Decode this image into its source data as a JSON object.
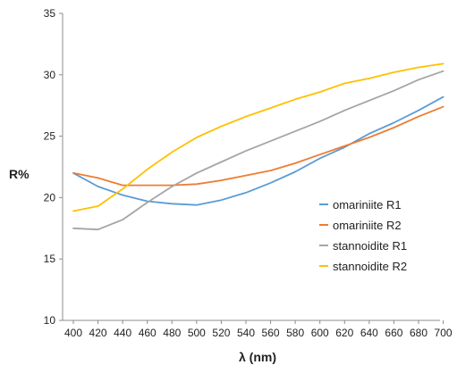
{
  "chart_data": {
    "type": "line",
    "xlabel": "λ (nm)",
    "ylabel": "R%",
    "xlim": [
      400,
      700
    ],
    "ylim": [
      10,
      35
    ],
    "x": [
      400,
      420,
      440,
      460,
      480,
      500,
      520,
      540,
      560,
      580,
      600,
      620,
      640,
      660,
      680,
      700
    ],
    "xticks": [
      "400",
      "420",
      "440",
      "460",
      "480",
      "500",
      "520",
      "540",
      "560",
      "580",
      "600",
      "620",
      "640",
      "660",
      "680",
      "700"
    ],
    "yticks": [
      "10",
      "15",
      "20",
      "25",
      "30",
      "35"
    ],
    "grid": false,
    "legend_position": "right",
    "series": [
      {
        "name": "omariniite R1",
        "color": "#5b9bd5",
        "values": [
          22.0,
          20.9,
          20.2,
          19.7,
          19.5,
          19.4,
          19.8,
          20.4,
          21.2,
          22.1,
          23.2,
          24.1,
          25.2,
          26.1,
          27.1,
          28.2
        ]
      },
      {
        "name": "omariniite R2",
        "color": "#ed7d31",
        "values": [
          22.0,
          21.6,
          21.0,
          21.0,
          21.0,
          21.1,
          21.4,
          21.8,
          22.2,
          22.8,
          23.5,
          24.2,
          24.9,
          25.7,
          26.6,
          27.4
        ]
      },
      {
        "name": "stannoidite R1",
        "color": "#a5a5a5",
        "values": [
          17.5,
          17.4,
          18.2,
          19.6,
          20.9,
          22.0,
          22.9,
          23.8,
          24.6,
          25.4,
          26.2,
          27.1,
          27.9,
          28.7,
          29.6,
          30.3
        ]
      },
      {
        "name": "stannoidite R2",
        "color": "#ffc000",
        "values": [
          18.9,
          19.3,
          20.7,
          22.3,
          23.7,
          24.9,
          25.8,
          26.6,
          27.3,
          28.0,
          28.6,
          29.3,
          29.7,
          30.2,
          30.6,
          30.9
        ]
      }
    ]
  }
}
